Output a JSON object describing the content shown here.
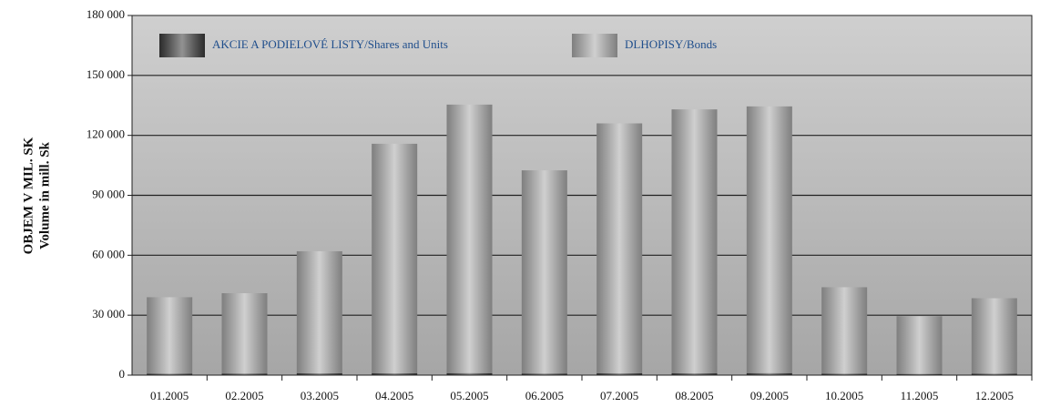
{
  "chart_data": {
    "type": "stacked_bar",
    "y_label": [
      "OBJEM V MIL. SK",
      "Volume in mill. Sk"
    ],
    "categories": [
      "01.2005",
      "02.2005",
      "03.2005",
      "04.2005",
      "05.2005",
      "06.2005",
      "07.2005",
      "08.2005",
      "09.2005",
      "10.2005",
      "11.2005",
      "12.2005"
    ],
    "series": [
      {
        "name": "AKCIE A PODIELOVÉ LISTY/Shares and Units",
        "color": "#3a3a3a",
        "values": [
          700,
          800,
          900,
          900,
          1000,
          800,
          900,
          900,
          1000,
          700,
          600,
          700
        ]
      },
      {
        "name": "DLHOPISY/Bonds",
        "color": "#a9a9a9",
        "values": [
          38300,
          40200,
          61100,
          114900,
          134400,
          101700,
          125100,
          132100,
          133500,
          43300,
          28900,
          37800
        ]
      }
    ],
    "ylim": [
      0,
      180000
    ],
    "yticks": [
      0,
      {
        "value": 30000,
        "label": "30 000"
      },
      {
        "value": 60000,
        "label": "60 000"
      },
      {
        "value": 90000,
        "label": "90 000"
      },
      {
        "value": 120000,
        "label": "120 000"
      },
      {
        "value": 150000,
        "label": "150 000"
      },
      {
        "value": 180000,
        "label": "180 000"
      }
    ],
    "grid": true
  }
}
